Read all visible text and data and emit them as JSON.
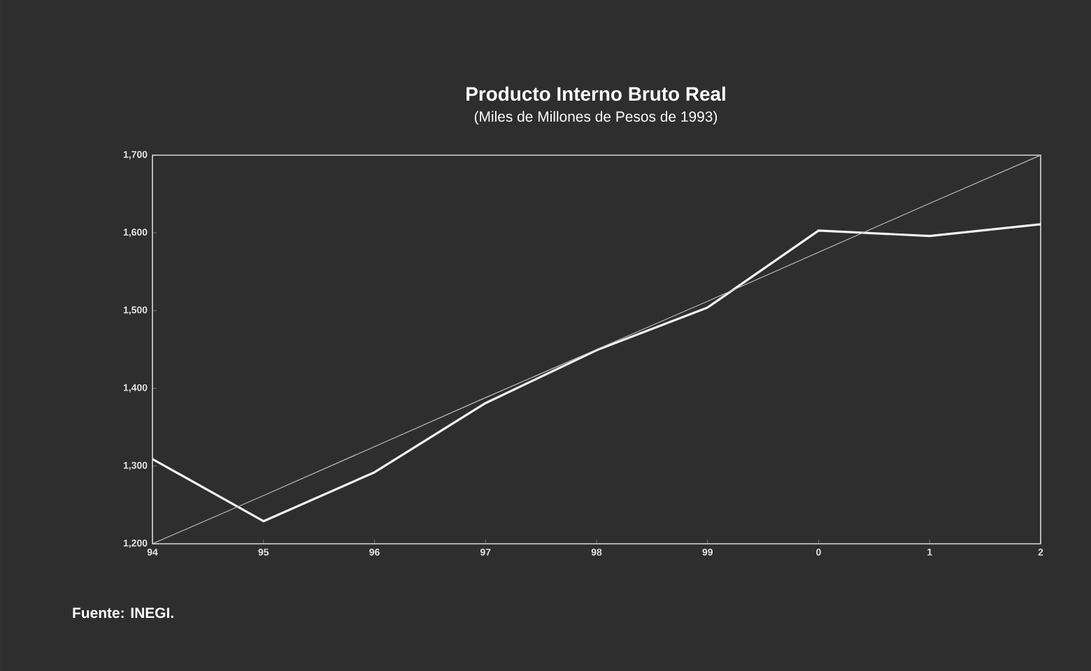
{
  "chart_data": {
    "type": "line",
    "title": "Producto Interno Bruto Real",
    "subtitle": "(Miles de Millones de Pesos de 1993)",
    "categories": [
      "94",
      "95",
      "96",
      "97",
      "98",
      "99",
      "0",
      "1",
      "2"
    ],
    "series": [
      {
        "color": "#f2f2f2",
        "values": [
          1309,
          1229,
          1292,
          1381,
          1449,
          1504,
          1603,
          1596,
          1611
        ]
      },
      {
        "color": "#bdbdbd",
        "values": [
          1200,
          1262,
          1325,
          1388,
          1450,
          1512,
          1575,
          1638,
          1700
        ]
      }
    ],
    "ylim": [
      1200,
      1700
    ],
    "yticks": [
      {
        "value": 1200,
        "label": "1,200"
      },
      {
        "value": 1300,
        "label": "1,300"
      },
      {
        "value": 1400,
        "label": "1,400"
      },
      {
        "value": 1500,
        "label": "1,500"
      },
      {
        "value": 1600,
        "label": "1,600"
      },
      {
        "value": 1700,
        "label": "1,700"
      }
    ],
    "grid": false,
    "marker": "none",
    "line_style": "solid",
    "annotations": [
      "Fuente: INEGI."
    ]
  }
}
